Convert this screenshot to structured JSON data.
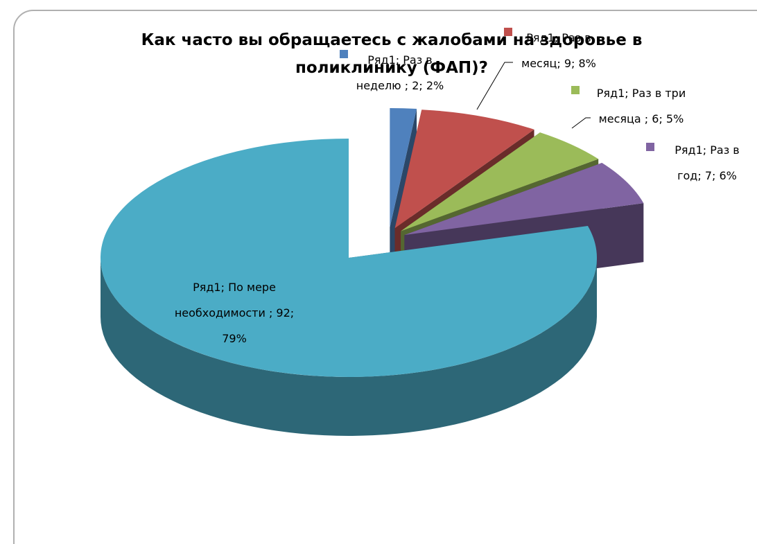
{
  "chart_data": {
    "type": "pie3d",
    "title": "Как часто вы обращаетесь с жалобами на здоровье в поликлинику (ФАП)?",
    "series_name": "Ряд1",
    "categories": [
      "Раз в неделю",
      "Раз в месяц",
      "Раз в три месяца",
      "Раз в год",
      "По мере необходимости"
    ],
    "values": [
      2,
      9,
      6,
      7,
      92
    ],
    "value_labels": [
      "Ряд1; Раз в неделю ; 2; 2%",
      "Ряд1; Раз в месяц; 9; 8%",
      "Ряд1; Раз в три месяца ; 6; 5%",
      "Ряд1; Раз в год; 7; 6%",
      "Ряд1; По мере необходимости ; 92; 79%"
    ],
    "colors": [
      "#4f81bd",
      "#c0504d",
      "#9bbb59",
      "#8064a2",
      "#4bacc6"
    ]
  }
}
